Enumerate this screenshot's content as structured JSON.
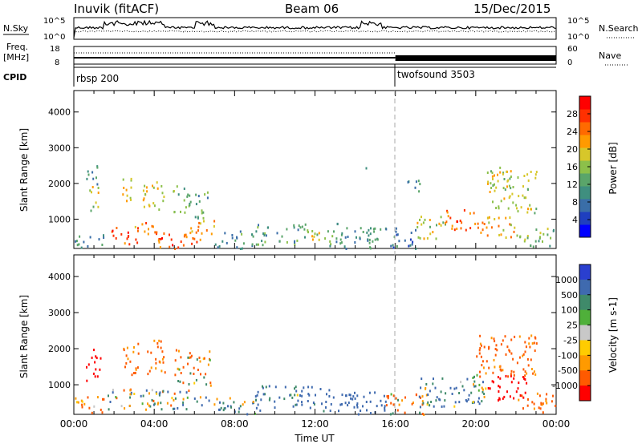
{
  "header": {
    "station": "Inuvik (fitACF)",
    "beam": "Beam 06",
    "date": "15/Dec/2015"
  },
  "status_panels": {
    "nsky_label": "N.Sky",
    "nsky_ticks": [
      "10^5",
      "10^0"
    ],
    "nsearch_label": "N.Search",
    "nsearch_ticks": [
      "10^5",
      "10^0"
    ],
    "freq_label": "Freq.",
    "freq_unit": "[MHz]",
    "freq_ticks": [
      "18",
      "8"
    ],
    "nave_label": "Nave",
    "nave_ticks": [
      "60",
      "0"
    ],
    "cpid_label": "CPID",
    "cpid_segments": [
      {
        "name": "rbsp 200",
        "start_hour": 0,
        "end_hour": 16
      },
      {
        "name": "twofsound 3503",
        "start_hour": 16,
        "end_hour": 24
      }
    ]
  },
  "chart_data": [
    {
      "type": "heatmap",
      "panel": "power",
      "ylabel": "Slant Range [km]",
      "xlim": [
        0,
        24
      ],
      "ylim": [
        180,
        4600
      ],
      "yticks": [
        1000,
        2000,
        3000,
        4000
      ],
      "colorbar": {
        "label": "Power [dB]",
        "ticks": [
          "4",
          "8",
          "12",
          "16",
          "20",
          "24",
          "28"
        ],
        "range": [
          0,
          32
        ],
        "colors": [
          "#0000ff",
          "#1f3fbf",
          "#3a6ea8",
          "#3f8f7f",
          "#5aa56a",
          "#8cc04a",
          "#d7c72a",
          "#ff9a00",
          "#ff6a00",
          "#ff3000",
          "#ff0000"
        ]
      },
      "scatter_blobs": [
        {
          "t": [
            0.7,
            1.2
          ],
          "r": [
            1200,
            2000
          ],
          "p": 18
        },
        {
          "t": [
            0.6,
            1.2
          ],
          "r": [
            2000,
            2700
          ],
          "p": 10
        },
        {
          "t": [
            2.4,
            3.1
          ],
          "r": [
            1500,
            2200
          ],
          "p": 20
        },
        {
          "t": [
            3.4,
            4.5
          ],
          "r": [
            1300,
            2200
          ],
          "p": 20
        },
        {
          "t": [
            4.8,
            5.8
          ],
          "r": [
            1200,
            2000
          ],
          "p": 14
        },
        {
          "t": [
            6.0,
            6.8
          ],
          "r": [
            1000,
            1800
          ],
          "p": 12
        },
        {
          "t": [
            1.8,
            3.2
          ],
          "r": [
            300,
            800
          ],
          "p": 28
        },
        {
          "t": [
            3.0,
            4.0
          ],
          "r": [
            600,
            950
          ],
          "p": 24
        },
        {
          "t": [
            4.0,
            6.5
          ],
          "r": [
            200,
            700
          ],
          "p": 26
        },
        {
          "t": [
            5.5,
            7.0
          ],
          "r": [
            600,
            1000
          ],
          "p": 22
        },
        {
          "t": [
            0.0,
            1.5
          ],
          "r": [
            200,
            600
          ],
          "p": 8
        },
        {
          "t": [
            7.0,
            9.0
          ],
          "r": [
            200,
            700
          ],
          "p": 10
        },
        {
          "t": [
            9.0,
            11.5
          ],
          "r": [
            300,
            900
          ],
          "p": 12
        },
        {
          "t": [
            11.5,
            12.5
          ],
          "r": [
            400,
            900
          ],
          "p": 18
        },
        {
          "t": [
            12.5,
            15.5
          ],
          "r": [
            200,
            900
          ],
          "p": 10
        },
        {
          "t": [
            15.5,
            17.0
          ],
          "r": [
            200,
            800
          ],
          "p": 8
        },
        {
          "t": [
            17.0,
            18.5
          ],
          "r": [
            400,
            1100
          ],
          "p": 18
        },
        {
          "t": [
            18.5,
            20.0
          ],
          "r": [
            700,
            1300
          ],
          "p": 26
        },
        {
          "t": [
            20.0,
            22.0
          ],
          "r": [
            500,
            1100
          ],
          "p": 22
        },
        {
          "t": [
            22.0,
            24.0
          ],
          "r": [
            250,
            800
          ],
          "p": 14
        },
        {
          "t": [
            20.5,
            23.0
          ],
          "r": [
            1200,
            2500
          ],
          "p": 18
        },
        {
          "t": [
            14.5,
            14.7
          ],
          "r": [
            2200,
            2500
          ],
          "p": 8
        },
        {
          "t": [
            16.5,
            17.3
          ],
          "r": [
            1800,
            2200
          ],
          "p": 8
        }
      ]
    },
    {
      "type": "heatmap",
      "panel": "velocity",
      "ylabel": "Slant Range [km]",
      "xlabel": "Time UT",
      "xlim": [
        0,
        24
      ],
      "ylim": [
        180,
        4600
      ],
      "xticks": [
        "00:00",
        "04:00",
        "08:00",
        "12:00",
        "16:00",
        "20:00",
        "00:00"
      ],
      "yticks": [
        1000,
        2000,
        3000,
        4000
      ],
      "colorbar": {
        "label": "Velocity [m s-1]",
        "ticks": [
          "1000",
          "500",
          "100",
          "25",
          "-25",
          "-100",
          "-500",
          "-1000"
        ],
        "colors": [
          "#2a3fcf",
          "#3f6aaf",
          "#3f8a6a",
          "#4fb03a",
          "#c8c8c8",
          "#ffcc00",
          "#ff9a00",
          "#ff5a00",
          "#ff0000"
        ]
      },
      "scatter_blobs": [
        {
          "t": [
            0.6,
            1.3
          ],
          "r": [
            1100,
            2000
          ],
          "v": -600
        },
        {
          "t": [
            2.4,
            3.2
          ],
          "r": [
            1300,
            2300
          ],
          "v": -150
        },
        {
          "t": [
            3.5,
            4.5
          ],
          "r": [
            1300,
            2300
          ],
          "v": -150
        },
        {
          "t": [
            5.0,
            6.8
          ],
          "r": [
            1000,
            2000
          ],
          "v": -80
        },
        {
          "t": [
            1.5,
            4.0
          ],
          "r": [
            300,
            900
          ],
          "v": 0
        },
        {
          "t": [
            4.0,
            6.5
          ],
          "r": [
            300,
            900
          ],
          "v": 0
        },
        {
          "t": [
            0.0,
            1.5
          ],
          "r": [
            200,
            700
          ],
          "v": -120
        },
        {
          "t": [
            6.5,
            9.0
          ],
          "r": [
            200,
            700
          ],
          "v": 60
        },
        {
          "t": [
            9.0,
            12.5
          ],
          "r": [
            300,
            1000
          ],
          "v": 120
        },
        {
          "t": [
            12.5,
            15.5
          ],
          "r": [
            200,
            900
          ],
          "v": 200
        },
        {
          "t": [
            15.5,
            17.5
          ],
          "r": [
            200,
            800
          ],
          "v": -80
        },
        {
          "t": [
            17.0,
            20.5
          ],
          "r": [
            400,
            1300
          ],
          "v": 80
        },
        {
          "t": [
            20.5,
            22.5
          ],
          "r": [
            600,
            1300
          ],
          "v": -700
        },
        {
          "t": [
            20.0,
            23.0
          ],
          "r": [
            1200,
            2400
          ],
          "v": -150
        },
        {
          "t": [
            22.0,
            24.0
          ],
          "r": [
            250,
            800
          ],
          "v": -150
        }
      ]
    }
  ]
}
